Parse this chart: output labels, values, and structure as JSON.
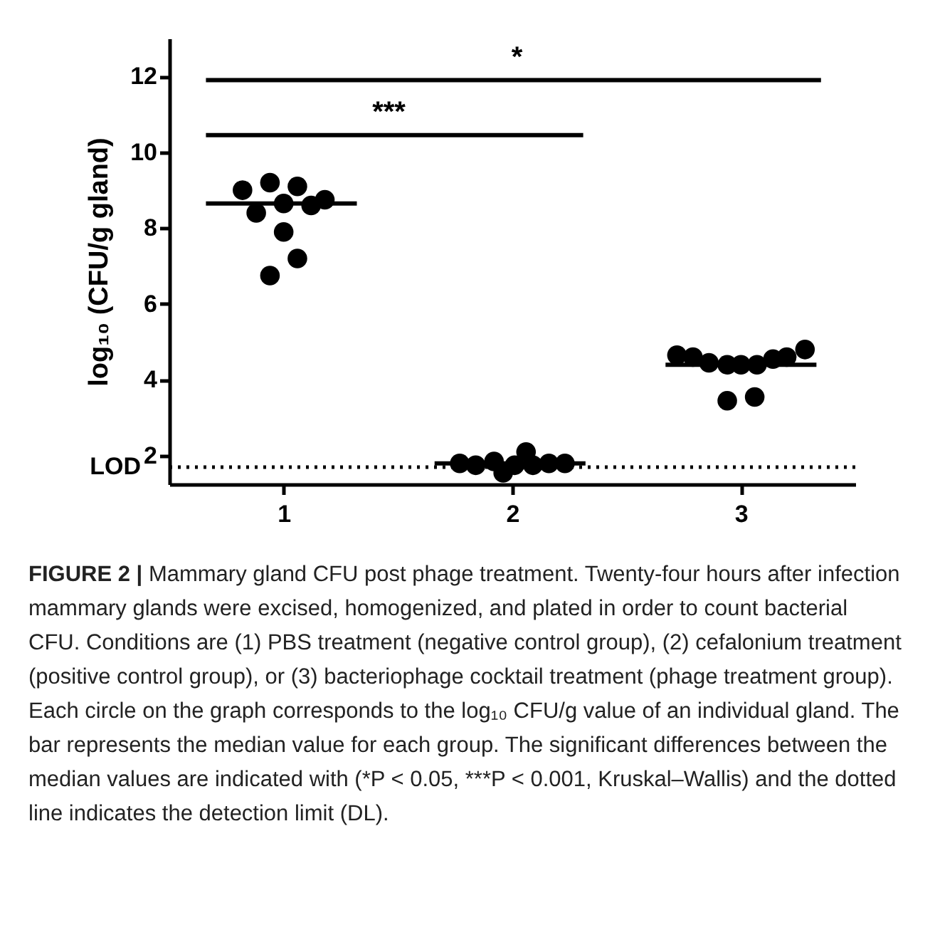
{
  "chart_data": {
    "type": "scatter",
    "ylabel": "log₁₀ (CFU/g gland)",
    "xlim": [
      0.5,
      3.5
    ],
    "xticks": [
      1,
      2,
      3
    ],
    "ylim": [
      1.25,
      13
    ],
    "yticks": [
      2,
      4,
      6,
      8,
      10,
      12
    ],
    "grid": false,
    "series": [
      {
        "color": "#000000",
        "marker": "circle",
        "x": [
          0.82,
          0.94,
          1.06,
          0.88,
          1.0,
          1.12,
          1.18,
          1.0,
          1.06,
          0.94,
          1.77,
          1.84,
          1.92,
          1.96,
          2.01,
          2.06,
          2.09,
          2.16,
          2.23,
          2.72,
          2.79,
          2.86,
          2.94,
          3.0,
          3.07,
          3.14,
          3.2,
          3.28,
          2.94,
          3.06
        ],
        "values": [
          9.0,
          9.2,
          9.1,
          8.4,
          8.65,
          8.6,
          8.75,
          7.9,
          7.2,
          6.75,
          1.8,
          1.75,
          1.85,
          1.55,
          1.75,
          2.1,
          1.75,
          1.8,
          1.8,
          4.65,
          4.6,
          4.45,
          4.4,
          4.4,
          4.4,
          4.55,
          4.6,
          4.8,
          3.45,
          3.55
        ]
      },
      {
        "type": "line",
        "color": "#000000",
        "x": [
          0.66,
          1.32
        ],
        "values": [
          8.65,
          8.65
        ]
      },
      {
        "type": "line",
        "color": "#000000",
        "x": [
          1.66,
          2.32
        ],
        "values": [
          1.8,
          1.8
        ]
      },
      {
        "type": "line",
        "color": "#000000",
        "x": [
          2.67,
          3.33
        ],
        "values": [
          4.4,
          4.4
        ]
      },
      {
        "type": "line",
        "color": "#000000",
        "x": [
          0.66,
          2.02,
          3.35
        ],
        "values": [
          11.9,
          11.9,
          11.9
        ],
        "value_labels": [
          null,
          "*",
          null
        ]
      },
      {
        "type": "line",
        "color": "#000000",
        "x": [
          0.66,
          1.46,
          2.31
        ],
        "values": [
          10.45,
          10.45,
          10.45
        ],
        "value_labels": [
          null,
          "***",
          null
        ]
      }
    ],
    "ref_lines": [
      {
        "axis": "y",
        "value": 1.7,
        "label": "LOD",
        "color": "#000000",
        "line_style": "dotted"
      }
    ],
    "annotations": [
      "FIGURE 2 |",
      "Mammary gland CFU post phage treatment. Twenty-four hours after infection mammary glands were excised, homogenized, and plated in order to count bacterial CFU. Conditions are (1) PBS treatment (negative control group), (2) cefalonium treatment (positive control group), or (3) bacteriophage cocktail treatment (phage treatment group). Each circle on the graph corresponds to the log₁₀ CFU/g value of an individual gland. The bar represents the median value for each group. The significant differences between the median values are indicated with (*P < 0.05, ***P < 0.001, Kruskal–Wallis) and the dotted line indicates the detection limit (DL)."
    ]
  }
}
